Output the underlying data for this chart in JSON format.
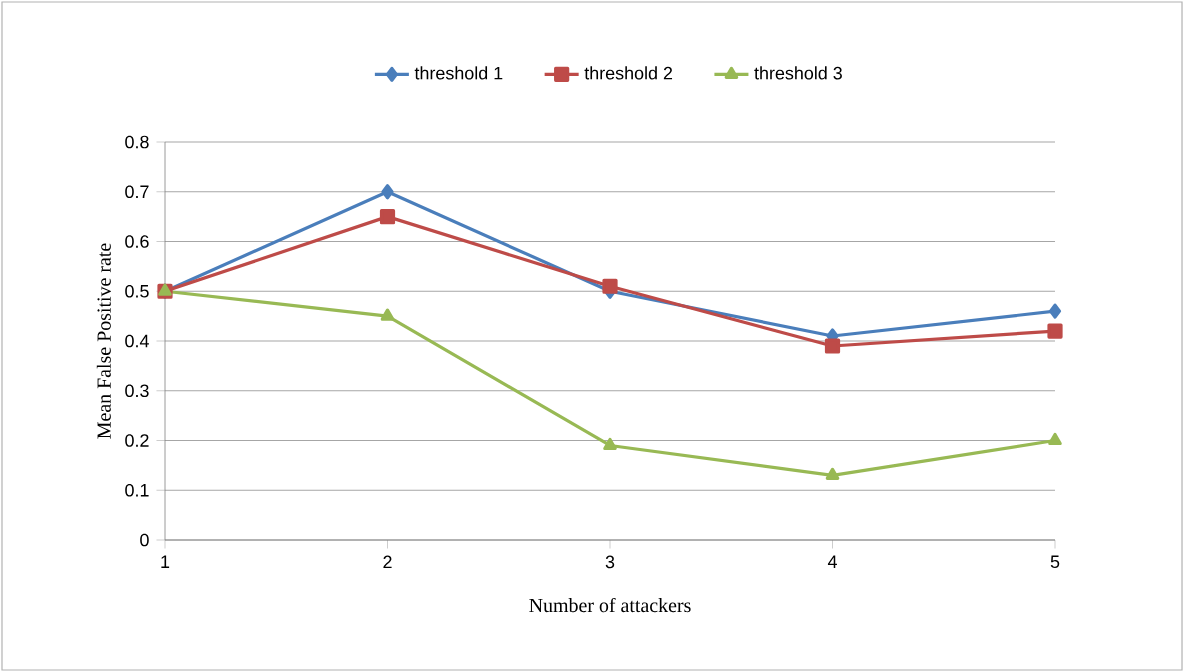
{
  "chart_data": {
    "type": "line",
    "xlabel": "Number of attackers",
    "ylabel": "Mean False Positive rate",
    "categories": [
      "1",
      "2",
      "3",
      "4",
      "5"
    ],
    "series": [
      {
        "name": "threshold 1",
        "color": "#4a7ebb",
        "marker": "diamond",
        "values": [
          0.5,
          0.7,
          0.5,
          0.41,
          0.46
        ]
      },
      {
        "name": "threshold 2",
        "color": "#be4b48",
        "marker": "square",
        "values": [
          0.5,
          0.65,
          0.51,
          0.39,
          0.42
        ]
      },
      {
        "name": "threshold 3",
        "color": "#98b954",
        "marker": "triangle",
        "values": [
          0.5,
          0.45,
          0.19,
          0.13,
          0.2
        ]
      }
    ],
    "ylim": [
      0,
      0.8
    ],
    "yticks": [
      0,
      0.1,
      0.2,
      0.3,
      0.4,
      0.5,
      0.6,
      0.7,
      0.8
    ],
    "grid": "y",
    "legend": "top"
  }
}
